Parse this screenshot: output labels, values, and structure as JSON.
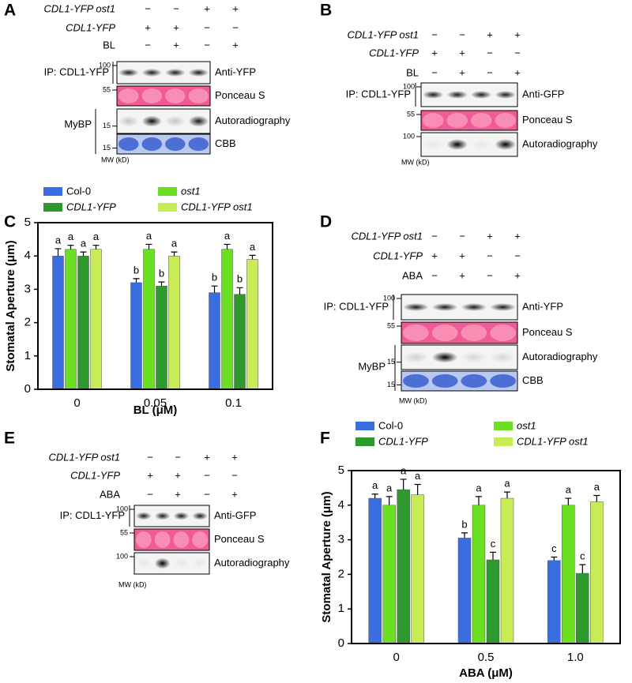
{
  "panels": [
    {
      "label": "A",
      "rows": [
        {
          "name": "CDL1-YFP ost1",
          "signs": [
            "−",
            "−",
            "+",
            "+"
          ]
        },
        {
          "name": "CDL1-YFP",
          "signs": [
            "+",
            "+",
            "−",
            "−"
          ]
        },
        {
          "name": "BL",
          "signs": [
            "−",
            "+",
            "−",
            "+"
          ]
        }
      ],
      "ip": "IP: CDL1-YFP",
      "mybp": "MyBP",
      "mw_unit": "MW (kD)",
      "blots": [
        {
          "name": "Anti-YFP",
          "mw": "100"
        },
        {
          "name": "Ponceau S",
          "mw": "55"
        },
        {
          "name": "Autoradiography",
          "mw": "15"
        },
        {
          "name": "CBB",
          "mw": "15"
        }
      ]
    },
    {
      "label": "B",
      "rows": [
        {
          "name": "CDL1-YFP ost1",
          "signs": [
            "−",
            "−",
            "+",
            "+"
          ]
        },
        {
          "name": "CDL1-YFP",
          "signs": [
            "+",
            "+",
            "−",
            "−"
          ]
        },
        {
          "name": "BL",
          "signs": [
            "−",
            "+",
            "−",
            "+"
          ]
        }
      ],
      "ip": "IP: CDL1-YFP",
      "mw_unit": "MW (kD)",
      "blots": [
        {
          "name": "Anti-GFP",
          "mw": "100"
        },
        {
          "name": "Ponceau S",
          "mw": "55"
        },
        {
          "name": "Autoradiography",
          "mw": "100"
        }
      ]
    },
    {
      "label": "D",
      "rows": [
        {
          "name": "CDL1-YFP ost1",
          "signs": [
            "−",
            "−",
            "+",
            "+"
          ]
        },
        {
          "name": "CDL1-YFP",
          "signs": [
            "+",
            "+",
            "−",
            "−"
          ]
        },
        {
          "name": "ABA",
          "signs": [
            "−",
            "+",
            "−",
            "+"
          ]
        }
      ],
      "ip": "IP: CDL1-YFP",
      "mybp": "MyBP",
      "mw_unit": "MW (kD)",
      "blots": [
        {
          "name": "Anti-YFP",
          "mw": "100"
        },
        {
          "name": "Ponceau S",
          "mw": "55"
        },
        {
          "name": "Autoradiography",
          "mw": "15"
        },
        {
          "name": "CBB",
          "mw": "15"
        }
      ]
    },
    {
      "label": "E",
      "rows": [
        {
          "name": "CDL1-YFP ost1",
          "signs": [
            "−",
            "−",
            "+",
            "+"
          ]
        },
        {
          "name": "CDL1-YFP",
          "signs": [
            "+",
            "+",
            "−",
            "−"
          ]
        },
        {
          "name": "ABA",
          "signs": [
            "−",
            "+",
            "−",
            "+"
          ]
        }
      ],
      "ip": "IP: CDL1-YFP",
      "mw_unit": "MW (kD)",
      "blots": [
        {
          "name": "Anti-GFP",
          "mw": "100"
        },
        {
          "name": "Ponceau S",
          "mw": "55"
        },
        {
          "name": "Autoradiography",
          "mw": "100"
        }
      ]
    }
  ],
  "chart_data": [
    {
      "type": "bar",
      "panel_label": "C",
      "x_label": "BL (μM)",
      "y_label": "Stomatal Aperture (μm)",
      "categories": [
        "0",
        "0.05",
        "0.1"
      ],
      "ylim": [
        0,
        5
      ],
      "yticks": [
        0,
        1,
        2,
        3,
        4,
        5
      ],
      "series": [
        {
          "name": "Col-0",
          "color": "#3a6ee0",
          "values": [
            4.0,
            3.2,
            2.9
          ],
          "errors": [
            0.22,
            0.12,
            0.2
          ],
          "letters": [
            "a",
            "b",
            "b"
          ]
        },
        {
          "name": "ost1",
          "color": "#6be022",
          "values": [
            4.2,
            4.2,
            4.2
          ],
          "errors": [
            0.12,
            0.15,
            0.15
          ],
          "letters": [
            "a",
            "a",
            "a"
          ]
        },
        {
          "name": "CDL1-YFP",
          "color": "#2e9a2e",
          "values": [
            4.0,
            3.1,
            2.85
          ],
          "errors": [
            0.12,
            0.12,
            0.2
          ],
          "letters": [
            "a",
            "b",
            "b"
          ]
        },
        {
          "name": "CDL1-YFP ost1",
          "color": "#c8ec55",
          "values": [
            4.2,
            4.0,
            3.9
          ],
          "errors": [
            0.12,
            0.12,
            0.12
          ],
          "letters": [
            "a",
            "a",
            "a"
          ]
        }
      ]
    },
    {
      "type": "bar",
      "panel_label": "F",
      "x_label": "ABA (μM)",
      "y_label": "Stomatal Aperture (μm)",
      "categories": [
        "0",
        "0.5",
        "1.0"
      ],
      "ylim": [
        0,
        5
      ],
      "yticks": [
        0,
        1,
        2,
        3,
        4,
        5
      ],
      "series": [
        {
          "name": "Col-0",
          "color": "#3a6ee0",
          "values": [
            4.2,
            3.05,
            2.4
          ],
          "errors": [
            0.12,
            0.15,
            0.1
          ],
          "letters": [
            "a",
            "b",
            "c"
          ]
        },
        {
          "name": "ost1",
          "color": "#6be022",
          "values": [
            4.0,
            4.0,
            4.0
          ],
          "errors": [
            0.25,
            0.25,
            0.2
          ],
          "letters": [
            "a",
            "a",
            "a"
          ]
        },
        {
          "name": "CDL1-YFP",
          "color": "#2e9a2e",
          "values": [
            4.45,
            2.42,
            2.03
          ],
          "errors": [
            0.3,
            0.22,
            0.25
          ],
          "letters": [
            "a",
            "c",
            "c"
          ]
        },
        {
          "name": "CDL1-YFP ost1",
          "color": "#c8ec55",
          "values": [
            4.3,
            4.2,
            4.1
          ],
          "errors": [
            0.3,
            0.18,
            0.18
          ],
          "letters": [
            "a",
            "a",
            "a"
          ]
        }
      ]
    }
  ]
}
